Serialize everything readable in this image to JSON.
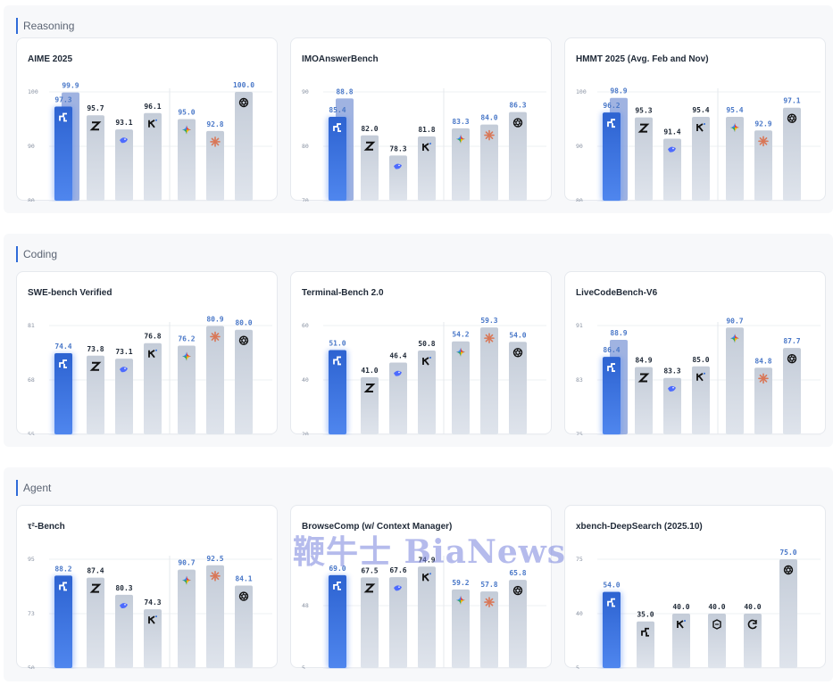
{
  "colors": {
    "primary_bar_top": "#2d63d1",
    "primary_bar_bottom": "#4f86ee",
    "primary_ghost": "#8fa6dc",
    "grey_bar_top": "#c4ccd8",
    "grey_bar_bottom": "#dfe4ec",
    "value_dark": "#1f2937",
    "value_blue": "#4a78c8"
  },
  "watermark": "鞭牛士 BiaNews",
  "sections": [
    {
      "title": "Reasoning",
      "charts": [
        {
          "title": "AIME 2025",
          "type": "bar",
          "ylim": [
            80,
            100
          ],
          "ticks": [
            "100",
            "90",
            "80"
          ],
          "primary": {
            "value": 97.3,
            "label": "97.3",
            "ghost": 99.9,
            "ghost_label": "99.9"
          },
          "bars": [
            {
              "value": 95.7,
              "label": "95.7",
              "icon": "zhipu-icon",
              "tone": "dark"
            },
            {
              "value": 93.1,
              "label": "93.1",
              "icon": "deepseek-icon",
              "tone": "dark"
            },
            {
              "value": 96.1,
              "label": "96.1",
              "icon": "kimi-icon",
              "tone": "dark"
            },
            {
              "value": 95.0,
              "label": "95.0",
              "icon": "gemini-icon",
              "tone": "blue"
            },
            {
              "value": 92.8,
              "label": "92.8",
              "icon": "claude-icon",
              "tone": "blue"
            },
            {
              "value": 100.0,
              "label": "100.0",
              "icon": "openai-icon",
              "tone": "blue"
            }
          ]
        },
        {
          "title": "IMOAnswerBench",
          "type": "bar",
          "ylim": [
            70,
            90
          ],
          "ticks": [
            "90",
            "80",
            "70"
          ],
          "primary": {
            "value": 85.4,
            "label": "85.4",
            "ghost": 88.8,
            "ghost_label": "88.8"
          },
          "bars": [
            {
              "value": 82.0,
              "label": "82.0",
              "icon": "zhipu-icon",
              "tone": "dark"
            },
            {
              "value": 78.3,
              "label": "78.3",
              "icon": "deepseek-icon",
              "tone": "dark"
            },
            {
              "value": 81.8,
              "label": "81.8",
              "icon": "kimi-icon",
              "tone": "dark"
            },
            {
              "value": 83.3,
              "label": "83.3",
              "icon": "gemini-icon",
              "tone": "blue"
            },
            {
              "value": 84.0,
              "label": "84.0",
              "icon": "claude-icon",
              "tone": "blue"
            },
            {
              "value": 86.3,
              "label": "86.3",
              "icon": "openai-icon",
              "tone": "blue"
            }
          ]
        },
        {
          "title": "HMMT 2025 (Avg. Feb and Nov)",
          "type": "bar",
          "ylim": [
            80,
            100
          ],
          "ticks": [
            "100",
            "90",
            "80"
          ],
          "primary": {
            "value": 96.2,
            "label": "96.2",
            "ghost": 98.9,
            "ghost_label": "98.9"
          },
          "bars": [
            {
              "value": 95.3,
              "label": "95.3",
              "icon": "zhipu-icon",
              "tone": "dark"
            },
            {
              "value": 91.4,
              "label": "91.4",
              "icon": "deepseek-icon",
              "tone": "dark"
            },
            {
              "value": 95.4,
              "label": "95.4",
              "icon": "kimi-icon",
              "tone": "dark"
            },
            {
              "value": 95.4,
              "label": "95.4",
              "icon": "gemini-icon",
              "tone": "blue"
            },
            {
              "value": 92.9,
              "label": "92.9",
              "icon": "claude-icon",
              "tone": "blue"
            },
            {
              "value": 97.1,
              "label": "97.1",
              "icon": "openai-icon",
              "tone": "blue"
            }
          ]
        }
      ]
    },
    {
      "title": "Coding",
      "charts": [
        {
          "title": "SWE-bench Verified",
          "type": "bar",
          "ylim": [
            55,
            81
          ],
          "ticks": [
            "81",
            "68",
            "55"
          ],
          "primary": {
            "value": 74.4,
            "label": "74.4"
          },
          "bars": [
            {
              "value": 73.8,
              "label": "73.8",
              "icon": "zhipu-icon",
              "tone": "dark"
            },
            {
              "value": 73.1,
              "label": "73.1",
              "icon": "deepseek-icon",
              "tone": "dark"
            },
            {
              "value": 76.8,
              "label": "76.8",
              "icon": "kimi-icon",
              "tone": "dark"
            },
            {
              "value": 76.2,
              "label": "76.2",
              "icon": "gemini-icon",
              "tone": "blue"
            },
            {
              "value": 80.9,
              "label": "80.9",
              "icon": "claude-icon",
              "tone": "blue"
            },
            {
              "value": 80.0,
              "label": "80.0",
              "icon": "openai-icon",
              "tone": "blue"
            }
          ]
        },
        {
          "title": "Terminal-Bench 2.0",
          "type": "bar",
          "ylim": [
            20,
            60
          ],
          "ticks": [
            "60",
            "40",
            "20"
          ],
          "primary": {
            "value": 51.0,
            "label": "51.0"
          },
          "bars": [
            {
              "value": 41.0,
              "label": "41.0",
              "icon": "zhipu-icon",
              "tone": "dark"
            },
            {
              "value": 46.4,
              "label": "46.4",
              "icon": "deepseek-icon",
              "tone": "dark"
            },
            {
              "value": 50.8,
              "label": "50.8",
              "icon": "kimi-icon",
              "tone": "dark"
            },
            {
              "value": 54.2,
              "label": "54.2",
              "icon": "gemini-icon",
              "tone": "blue"
            },
            {
              "value": 59.3,
              "label": "59.3",
              "icon": "claude-icon",
              "tone": "blue"
            },
            {
              "value": 54.0,
              "label": "54.0",
              "icon": "openai-icon",
              "tone": "blue"
            }
          ]
        },
        {
          "title": "LiveCodeBench-V6",
          "type": "bar",
          "ylim": [
            75,
            91
          ],
          "ticks": [
            "91",
            "83",
            "75"
          ],
          "primary": {
            "value": 86.4,
            "label": "86.4",
            "ghost": 88.9,
            "ghost_label": "88.9"
          },
          "bars": [
            {
              "value": 84.9,
              "label": "84.9",
              "icon": "zhipu-icon",
              "tone": "dark"
            },
            {
              "value": 83.3,
              "label": "83.3",
              "icon": "deepseek-icon",
              "tone": "dark"
            },
            {
              "value": 85.0,
              "label": "85.0",
              "icon": "kimi-icon",
              "tone": "dark"
            },
            {
              "value": 90.7,
              "label": "90.7",
              "icon": "gemini-icon",
              "tone": "blue"
            },
            {
              "value": 84.8,
              "label": "84.8",
              "icon": "claude-icon",
              "tone": "blue"
            },
            {
              "value": 87.7,
              "label": "87.7",
              "icon": "openai-icon",
              "tone": "blue"
            }
          ]
        }
      ]
    },
    {
      "title": "Agent",
      "charts": [
        {
          "title": "τ²-Bench",
          "type": "bar",
          "ylim": [
            50,
            95
          ],
          "ticks": [
            "95",
            "73",
            "50"
          ],
          "primary": {
            "value": 88.2,
            "label": "88.2"
          },
          "bars": [
            {
              "value": 87.4,
              "label": "87.4",
              "icon": "zhipu-icon",
              "tone": "dark"
            },
            {
              "value": 80.3,
              "label": "80.3",
              "icon": "deepseek-icon",
              "tone": "dark"
            },
            {
              "value": 74.3,
              "label": "74.3",
              "icon": "kimi-icon",
              "tone": "dark"
            },
            {
              "value": 90.7,
              "label": "90.7",
              "icon": "gemini-icon",
              "tone": "blue"
            },
            {
              "value": 92.5,
              "label": "92.5",
              "icon": "claude-icon",
              "tone": "blue"
            },
            {
              "value": 84.1,
              "label": "84.1",
              "icon": "openai-icon",
              "tone": "blue"
            }
          ]
        },
        {
          "title": "BrowseComp (w/ Context Manager)",
          "type": "bar",
          "ylim": [
            5,
            80
          ],
          "ticks": [
            "48",
            "5"
          ],
          "primary": {
            "value": 69.0,
            "label": "69.0"
          },
          "bars": [
            {
              "value": 67.5,
              "label": "67.5",
              "icon": "zhipu-icon",
              "tone": "dark"
            },
            {
              "value": 67.6,
              "label": "67.6",
              "icon": "deepseek-icon",
              "tone": "dark"
            },
            {
              "value": 74.9,
              "label": "74.9",
              "icon": "kimi-icon",
              "tone": "dark"
            },
            {
              "value": 59.2,
              "label": "59.2",
              "icon": "gemini-icon",
              "tone": "blue"
            },
            {
              "value": 57.8,
              "label": "57.8",
              "icon": "claude-icon",
              "tone": "blue"
            },
            {
              "value": 65.8,
              "label": "65.8",
              "icon": "openai-icon",
              "tone": "blue"
            }
          ]
        },
        {
          "title": "xbench-DeepSearch (2025.10)",
          "type": "bar",
          "ylim": [
            5,
            75
          ],
          "ticks": [
            "75",
            "40",
            "5"
          ],
          "primary": {
            "value": 54.0,
            "label": "54.0"
          },
          "bars": [
            {
              "value": 35.0,
              "label": "35.0",
              "icon": "minimax-icon",
              "tone": "dark"
            },
            {
              "value": 40.0,
              "label": "40.0",
              "icon": "kimi-icon",
              "tone": "dark"
            },
            {
              "value": 40.0,
              "label": "40.0",
              "icon": "qwen-icon",
              "tone": "dark"
            },
            {
              "value": 40.0,
              "label": "40.0",
              "icon": "refresh-icon",
              "tone": "dark"
            },
            {
              "value": 75.0,
              "label": "75.0",
              "icon": "openai-icon",
              "tone": "blue"
            }
          ]
        }
      ]
    }
  ],
  "chart_data": [
    {
      "type": "bar",
      "title": "AIME 2025",
      "ylim": [
        80,
        100
      ],
      "values": [
        97.3,
        95.7,
        93.1,
        96.1,
        95.0,
        92.8,
        100.0
      ],
      "extra_value": 99.9
    },
    {
      "type": "bar",
      "title": "IMOAnswerBench",
      "ylim": [
        70,
        90
      ],
      "values": [
        85.4,
        82.0,
        78.3,
        81.8,
        83.3,
        84.0,
        86.3
      ],
      "extra_value": 88.8
    },
    {
      "type": "bar",
      "title": "HMMT 2025 (Avg. Feb and Nov)",
      "ylim": [
        80,
        100
      ],
      "values": [
        96.2,
        95.3,
        91.4,
        95.4,
        95.4,
        92.9,
        97.1
      ],
      "extra_value": 98.9
    },
    {
      "type": "bar",
      "title": "SWE-bench Verified",
      "ylim": [
        55,
        81
      ],
      "values": [
        74.4,
        73.8,
        73.1,
        76.8,
        76.2,
        80.9,
        80.0
      ]
    },
    {
      "type": "bar",
      "title": "Terminal-Bench 2.0",
      "ylim": [
        20,
        60
      ],
      "values": [
        51.0,
        41.0,
        46.4,
        50.8,
        54.2,
        59.3,
        54.0
      ]
    },
    {
      "type": "bar",
      "title": "LiveCodeBench-V6",
      "ylim": [
        75,
        91
      ],
      "values": [
        86.4,
        84.9,
        83.3,
        85.0,
        90.7,
        84.8,
        87.7
      ],
      "extra_value": 88.9
    },
    {
      "type": "bar",
      "title": "τ²-Bench",
      "ylim": [
        50,
        95
      ],
      "values": [
        88.2,
        87.4,
        80.3,
        74.3,
        90.7,
        92.5,
        84.1
      ]
    },
    {
      "type": "bar",
      "title": "BrowseComp (w/ Context Manager)",
      "ylim": [
        5,
        80
      ],
      "values": [
        69.0,
        67.5,
        67.6,
        74.9,
        59.2,
        57.8,
        65.8
      ]
    },
    {
      "type": "bar",
      "title": "xbench-DeepSearch (2025.10)",
      "ylim": [
        5,
        75
      ],
      "values": [
        54.0,
        35.0,
        40.0,
        40.0,
        40.0,
        75.0
      ]
    }
  ]
}
